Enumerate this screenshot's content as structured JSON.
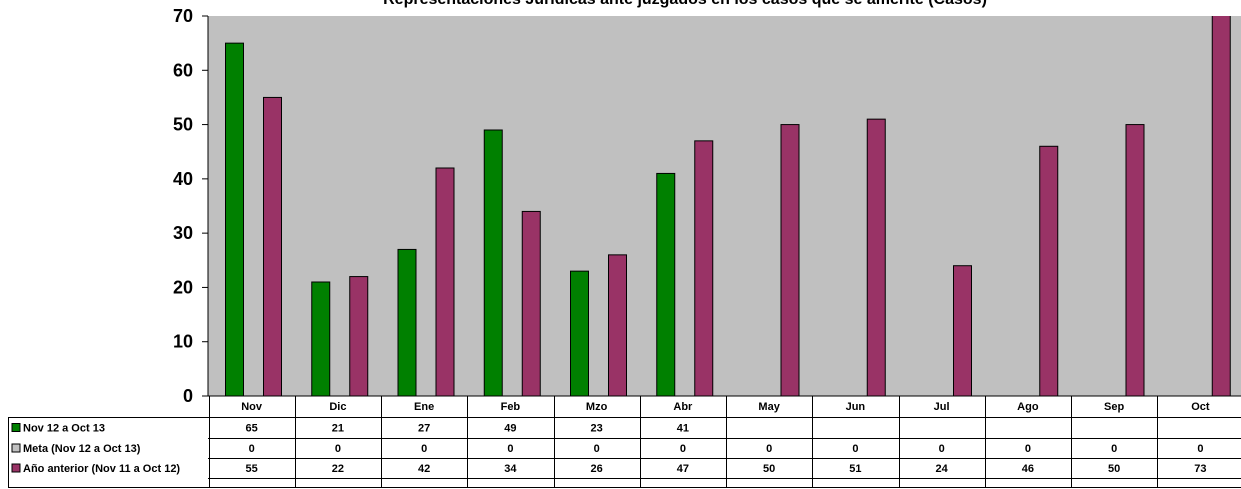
{
  "chart_data": {
    "type": "bar",
    "title": "Representaciones Jurídicas ante juzgados en los casos que se amerite (Casos)",
    "categories": [
      "Nov",
      "Dic",
      "Ene",
      "Feb",
      "Mzo",
      "Abr",
      "May",
      "Jun",
      "Jul",
      "Ago",
      "Sep",
      "Oct"
    ],
    "ylim": [
      0,
      70
    ],
    "yticks": [
      0,
      10,
      20,
      30,
      40,
      50,
      60,
      70
    ],
    "grid": false,
    "plot_background": "#c0c0c0",
    "legend_placement": "data-table-left",
    "series": [
      {
        "name": "Nov 12 a Oct 13",
        "color": "#008000",
        "values": [
          65,
          21,
          27,
          49,
          23,
          41,
          null,
          null,
          null,
          null,
          null,
          null
        ],
        "labels": [
          "65",
          "21",
          "27",
          "49",
          "23",
          "41",
          "",
          "",
          "",
          "",
          "",
          ""
        ]
      },
      {
        "name": "Meta (Nov 12 a Oct 13)",
        "color": "#c0c0c0",
        "values": [
          0,
          0,
          0,
          0,
          0,
          0,
          0,
          0,
          0,
          0,
          0,
          0
        ],
        "labels": [
          "0",
          "0",
          "0",
          "0",
          "0",
          "0",
          "0",
          "0",
          "0",
          "0",
          "0",
          "0"
        ]
      },
      {
        "name": "Año anterior (Nov 11 a Oct 12)",
        "color": "#993366",
        "values": [
          55,
          22,
          42,
          34,
          26,
          47,
          50,
          51,
          24,
          46,
          50,
          73
        ],
        "labels": [
          "55",
          "22",
          "42",
          "34",
          "26",
          "47",
          "50",
          "51",
          "24",
          "46",
          "50",
          "73"
        ]
      }
    ]
  }
}
